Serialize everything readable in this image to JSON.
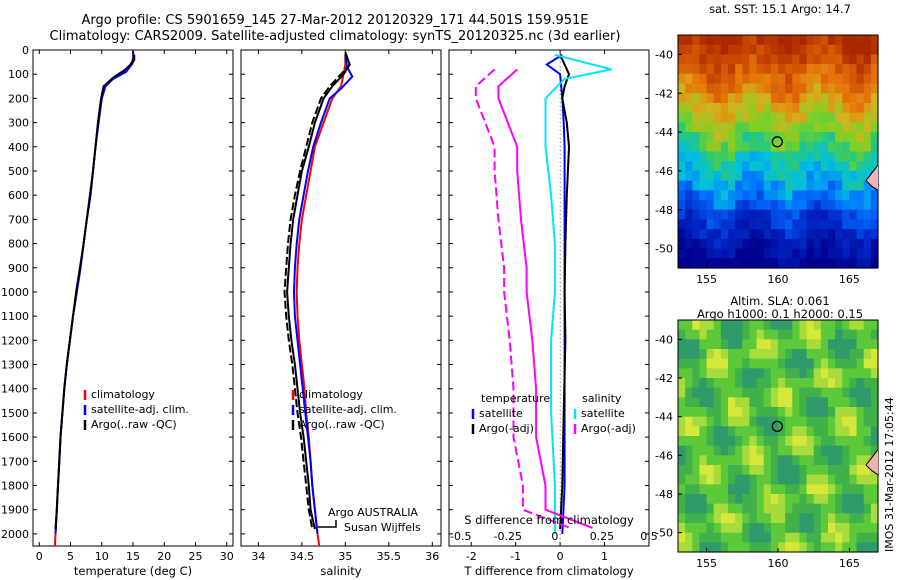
{
  "header": {
    "line1": "Argo profile: CS 5901659_145 27-Mar-2012 20120329_171 44.501S 159.951E",
    "line2": "Climatology: CARS2009. Satellite-adjusted climatology: synTS_20120325.nc (3d earlier)"
  },
  "colors": {
    "climatology": "#ff0000",
    "satellite": "#0000ff",
    "argo": "#000000",
    "salinity_satellite": "#00e5ff",
    "salinity_argo": "#ff00ff"
  },
  "chart_data": [
    {
      "type": "line",
      "title": "",
      "xlabel": "temperature (deg C)",
      "ylabel": "",
      "xlim": [
        -1,
        31
      ],
      "ylim": [
        2050,
        0
      ],
      "xticks": [
        0,
        5,
        10,
        15,
        20,
        25,
        30
      ],
      "yticks": [
        0,
        100,
        200,
        300,
        400,
        500,
        600,
        700,
        800,
        900,
        1000,
        1100,
        1200,
        1300,
        1400,
        1500,
        1600,
        1700,
        1800,
        1900,
        2000
      ],
      "legend": {
        "position": "lower-middle",
        "entries": [
          "climatology",
          "satellite-adj. clim.",
          "Argo(..raw -QC)"
        ]
      },
      "series": [
        {
          "name": "climatology",
          "color": "#ff0000",
          "points": [
            [
              15.0,
              20
            ],
            [
              15.0,
              40
            ],
            [
              14.6,
              60
            ],
            [
              13.6,
              90
            ],
            [
              11.6,
              120
            ],
            [
              10.4,
              150
            ],
            [
              9.9,
              200
            ],
            [
              9.4,
              300
            ],
            [
              9.0,
              400
            ],
            [
              8.6,
              500
            ],
            [
              8.2,
              600
            ],
            [
              7.6,
              700
            ],
            [
              7.1,
              800
            ],
            [
              6.6,
              900
            ],
            [
              6.0,
              1000
            ],
            [
              5.4,
              1100
            ],
            [
              4.9,
              1200
            ],
            [
              4.4,
              1300
            ],
            [
              4.0,
              1400
            ],
            [
              3.7,
              1500
            ],
            [
              3.4,
              1600
            ],
            [
              3.2,
              1700
            ],
            [
              3.0,
              1800
            ],
            [
              2.8,
              1900
            ],
            [
              2.6,
              2000
            ],
            [
              2.5,
              2050
            ]
          ]
        },
        {
          "name": "satellite-adj. clim.",
          "color": "#0000ff",
          "points": [
            [
              15.2,
              20
            ],
            [
              15.2,
              40
            ],
            [
              14.8,
              60
            ],
            [
              13.9,
              90
            ],
            [
              11.8,
              120
            ],
            [
              10.6,
              150
            ],
            [
              10.0,
              200
            ],
            [
              9.5,
              300
            ],
            [
              9.0,
              400
            ],
            [
              8.6,
              500
            ],
            [
              8.2,
              600
            ],
            [
              7.6,
              700
            ],
            [
              7.1,
              800
            ],
            [
              6.6,
              900
            ],
            [
              6.0,
              1000
            ],
            [
              5.4,
              1100
            ],
            [
              4.9,
              1200
            ],
            [
              4.4,
              1300
            ],
            [
              4.0,
              1400
            ],
            [
              3.7,
              1500
            ],
            [
              3.4,
              1600
            ],
            [
              3.2,
              1700
            ],
            [
              3.0,
              1800
            ],
            [
              2.8,
              1900
            ],
            [
              2.6,
              2000
            ]
          ]
        },
        {
          "name": "Argo(..raw -QC)",
          "color": "#000000",
          "points": [
            [
              15.0,
              5
            ],
            [
              15.1,
              30
            ],
            [
              14.8,
              55
            ],
            [
              13.8,
              80
            ],
            [
              11.8,
              115
            ],
            [
              10.3,
              150
            ],
            [
              9.9,
              200
            ],
            [
              9.4,
              300
            ],
            [
              9.0,
              400
            ],
            [
              8.6,
              500
            ],
            [
              8.1,
              600
            ],
            [
              7.6,
              700
            ],
            [
              7.1,
              800
            ],
            [
              6.5,
              900
            ],
            [
              5.9,
              1000
            ],
            [
              5.4,
              1100
            ],
            [
              4.9,
              1200
            ],
            [
              4.4,
              1300
            ],
            [
              4.0,
              1400
            ],
            [
              3.7,
              1500
            ],
            [
              3.4,
              1600
            ],
            [
              3.2,
              1700
            ],
            [
              3.0,
              1800
            ],
            [
              2.8,
              1900
            ],
            [
              2.6,
              1980
            ]
          ]
        }
      ]
    },
    {
      "type": "line",
      "title": "",
      "xlabel": "salinity",
      "ylabel": "",
      "xlim": [
        33.8,
        36.1
      ],
      "ylim": [
        2050,
        0
      ],
      "xticks": [
        34,
        34.5,
        35,
        35.5,
        36
      ],
      "legend": {
        "position": "lower-middle",
        "entries": [
          "climatology",
          "satellite-adj. clim.",
          "Argo(..raw -QC)"
        ]
      },
      "annotations": [
        "Argo AUSTRALIA",
        "Susan Wijffels"
      ],
      "series": [
        {
          "name": "climatology",
          "color": "#ff0000",
          "points": [
            [
              35.0,
              20
            ],
            [
              35.0,
              60
            ],
            [
              34.98,
              100
            ],
            [
              34.95,
              150
            ],
            [
              34.85,
              200
            ],
            [
              34.75,
              300
            ],
            [
              34.65,
              400
            ],
            [
              34.6,
              500
            ],
            [
              34.55,
              600
            ],
            [
              34.5,
              700
            ],
            [
              34.47,
              800
            ],
            [
              34.45,
              900
            ],
            [
              34.44,
              1000
            ],
            [
              34.45,
              1100
            ],
            [
              34.47,
              1200
            ],
            [
              34.5,
              1300
            ],
            [
              34.53,
              1400
            ],
            [
              34.55,
              1500
            ],
            [
              34.58,
              1600
            ],
            [
              34.6,
              1700
            ],
            [
              34.62,
              1800
            ],
            [
              34.65,
              1900
            ],
            [
              34.68,
              2000
            ],
            [
              34.7,
              2050
            ]
          ]
        },
        {
          "name": "satellite-adj. clim.",
          "color": "#0000ff",
          "points": [
            [
              35.0,
              20
            ],
            [
              35.02,
              70
            ],
            [
              35.08,
              110
            ],
            [
              34.95,
              160
            ],
            [
              34.82,
              200
            ],
            [
              34.72,
              300
            ],
            [
              34.63,
              400
            ],
            [
              34.57,
              500
            ],
            [
              34.52,
              600
            ],
            [
              34.47,
              700
            ],
            [
              34.44,
              800
            ],
            [
              34.42,
              900
            ],
            [
              34.41,
              1000
            ],
            [
              34.42,
              1100
            ],
            [
              34.45,
              1200
            ],
            [
              34.48,
              1300
            ],
            [
              34.51,
              1400
            ],
            [
              34.54,
              1500
            ],
            [
              34.57,
              1600
            ],
            [
              34.6,
              1700
            ],
            [
              34.62,
              1800
            ],
            [
              34.65,
              1900
            ],
            [
              34.68,
              2000
            ]
          ]
        },
        {
          "name": "Argo(..raw -QC)",
          "color": "#000000",
          "points": [
            [
              35.0,
              10
            ],
            [
              35.05,
              60
            ],
            [
              34.98,
              100
            ],
            [
              34.85,
              150
            ],
            [
              34.75,
              200
            ],
            [
              34.65,
              300
            ],
            [
              34.58,
              400
            ],
            [
              34.5,
              500
            ],
            [
              34.45,
              600
            ],
            [
              34.4,
              700
            ],
            [
              34.37,
              800
            ],
            [
              34.35,
              900
            ],
            [
              34.33,
              1000
            ],
            [
              34.35,
              1100
            ],
            [
              34.38,
              1200
            ],
            [
              34.42,
              1300
            ],
            [
              34.45,
              1400
            ],
            [
              34.48,
              1500
            ],
            [
              34.52,
              1600
            ],
            [
              34.55,
              1700
            ],
            [
              34.58,
              1800
            ],
            [
              34.6,
              1900
            ],
            [
              34.65,
              1980
            ]
          ]
        },
        {
          "name": "",
          "color": "#000000",
          "points": [
            [
              35.0,
              10
            ],
            [
              35.05,
              60
            ],
            [
              34.95,
              100
            ],
            [
              34.82,
              150
            ],
            [
              34.72,
              200
            ],
            [
              34.62,
              300
            ],
            [
              34.55,
              400
            ],
            [
              34.48,
              500
            ],
            [
              34.42,
              600
            ],
            [
              34.37,
              700
            ],
            [
              34.34,
              800
            ],
            [
              34.32,
              900
            ],
            [
              34.3,
              1000
            ],
            [
              34.32,
              1100
            ],
            [
              34.35,
              1200
            ],
            [
              34.39,
              1300
            ],
            [
              34.42,
              1400
            ],
            [
              34.45,
              1500
            ],
            [
              34.49,
              1600
            ],
            [
              34.52,
              1700
            ],
            [
              34.55,
              1800
            ],
            [
              34.58,
              1900
            ],
            [
              34.62,
              1980
            ]
          ]
        }
      ]
    },
    {
      "type": "line",
      "title": "",
      "xlabel": "T difference from climatology",
      "xlabel2": "S difference from climatology",
      "ylabel": "",
      "xlim": [
        -2.5,
        2.0
      ],
      "ylim": [
        2050,
        0
      ],
      "xticks": [
        -2,
        -1,
        0,
        1
      ],
      "xticks_salinity": [
        -0.5,
        -0.25,
        0,
        0.25,
        0.5
      ],
      "legend": {
        "position": "lower-middle",
        "groups": [
          "temperature",
          "salinity"
        ],
        "entries": [
          "satellite",
          "Argo(-adj)",
          "satellite",
          "Argo(-adj)"
        ]
      },
      "series": [
        {
          "name": "satellite",
          "group": "temperature",
          "color": "#0000ff",
          "points": [
            [
              0.05,
              20
            ],
            [
              -0.3,
              60
            ],
            [
              0.0,
              100
            ],
            [
              0.05,
              200
            ],
            [
              0.08,
              300
            ],
            [
              0.1,
              400
            ],
            [
              0.1,
              600
            ],
            [
              0.1,
              800
            ],
            [
              0.1,
              1000
            ],
            [
              0.1,
              1200
            ],
            [
              0.1,
              1500
            ],
            [
              0.1,
              1800
            ],
            [
              0.05,
              2000
            ]
          ]
        },
        {
          "name": "Argo(-adj)",
          "group": "temperature",
          "color": "#000000",
          "points": [
            [
              0.0,
              20
            ],
            [
              0.1,
              60
            ],
            [
              0.2,
              100
            ],
            [
              0.1,
              150
            ],
            [
              0.05,
              200
            ],
            [
              0.15,
              300
            ],
            [
              0.2,
              400
            ],
            [
              0.15,
              600
            ],
            [
              0.12,
              800
            ],
            [
              0.1,
              1000
            ],
            [
              0.12,
              1200
            ],
            [
              0.08,
              1500
            ],
            [
              0.05,
              1800
            ],
            [
              0.0,
              1980
            ]
          ]
        },
        {
          "name": "satellite",
          "group": "salinity",
          "color": "#00e5ff",
          "points": [
            [
              0.0,
              20
            ],
            [
              0.3,
              80
            ],
            [
              0.05,
              120
            ],
            [
              -0.05,
              200
            ],
            [
              -0.05,
              400
            ],
            [
              -0.02,
              600
            ],
            [
              0.0,
              800
            ],
            [
              0.0,
              1000
            ],
            [
              -0.02,
              1200
            ],
            [
              -0.02,
              1500
            ],
            [
              0.0,
              1800
            ],
            [
              0.0,
              2000
            ]
          ]
        },
        {
          "name": "Argo(-adj)",
          "group": "salinity",
          "color": "#ff00ff",
          "points": [
            [
              -0.2,
              80
            ],
            [
              -0.3,
              150
            ],
            [
              -0.3,
              200
            ],
            [
              -0.25,
              300
            ],
            [
              -0.2,
              400
            ],
            [
              -0.2,
              500
            ],
            [
              -0.18,
              700
            ],
            [
              -0.15,
              900
            ],
            [
              -0.15,
              1000
            ],
            [
              -0.12,
              1200
            ],
            [
              -0.1,
              1400
            ],
            [
              -0.1,
              1600
            ],
            [
              -0.05,
              1800
            ],
            [
              -0.05,
              1900
            ],
            [
              0.2,
              1975
            ]
          ]
        }
      ]
    }
  ],
  "maps": {
    "sst": {
      "title": "sat. SST: 15.1 Argo: 14.7",
      "xlim": [
        153,
        167
      ],
      "ylim": [
        -51,
        -39
      ],
      "xticks": [
        155,
        160,
        165
      ],
      "yticks": [
        -40,
        -42,
        -44,
        -46,
        -48,
        -50
      ],
      "marker": {
        "lon": 159.951,
        "lat": -44.501
      }
    },
    "sla": {
      "title_line1": "Altim. SLA: 0.061",
      "title_line2": "Argo h1000: 0.1 h2000: 0.15",
      "xlim": [
        153,
        167
      ],
      "ylim": [
        -51,
        -39
      ],
      "xticks": [
        155,
        160,
        165
      ],
      "yticks": [
        -40,
        -42,
        -44,
        -46,
        -48,
        -50
      ],
      "marker": {
        "lon": 159.951,
        "lat": -44.501
      },
      "side_text": "IMOS 31-Mar-2012 17:05:44"
    }
  }
}
